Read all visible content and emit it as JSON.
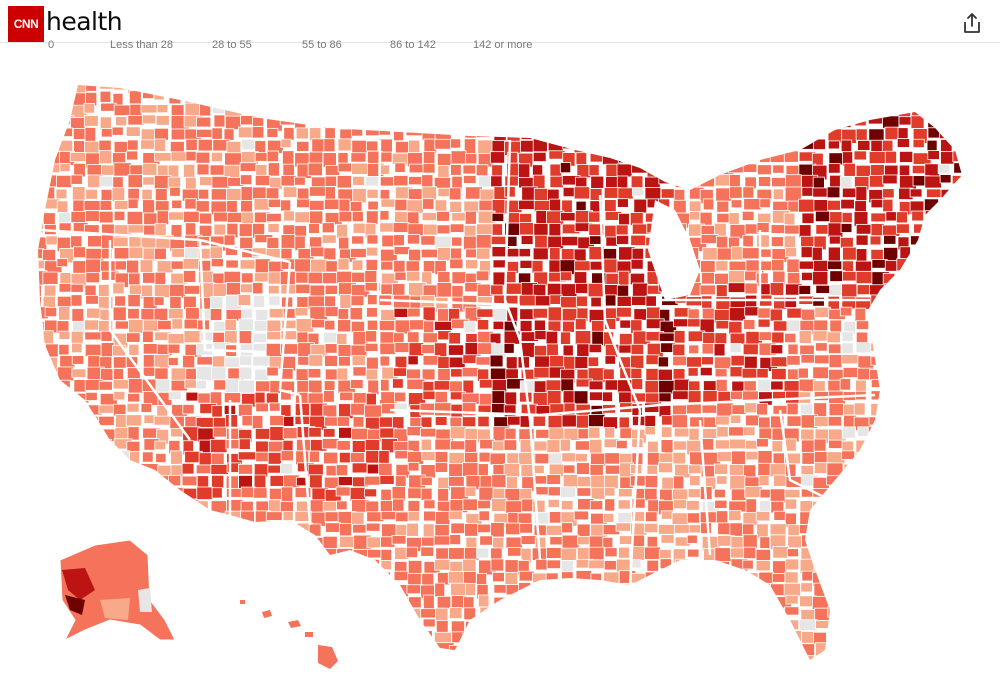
{
  "header": {
    "logo": "CNN",
    "section": "health",
    "share_icon": "share-icon"
  },
  "legend": {
    "labels": [
      "0",
      "Less than 28",
      "28 to 55",
      "55 to 86",
      "86 to 142",
      "142 or more"
    ],
    "colors": [
      "#e6e6e6",
      "#f7a98a",
      "#f4735a",
      "#e03c2c",
      "#bb1413",
      "#6e0000"
    ]
  },
  "map": {
    "region": "United States counties",
    "regions_shown": [
      "Contiguous United States",
      "Alaska",
      "Hawaii"
    ]
  }
}
